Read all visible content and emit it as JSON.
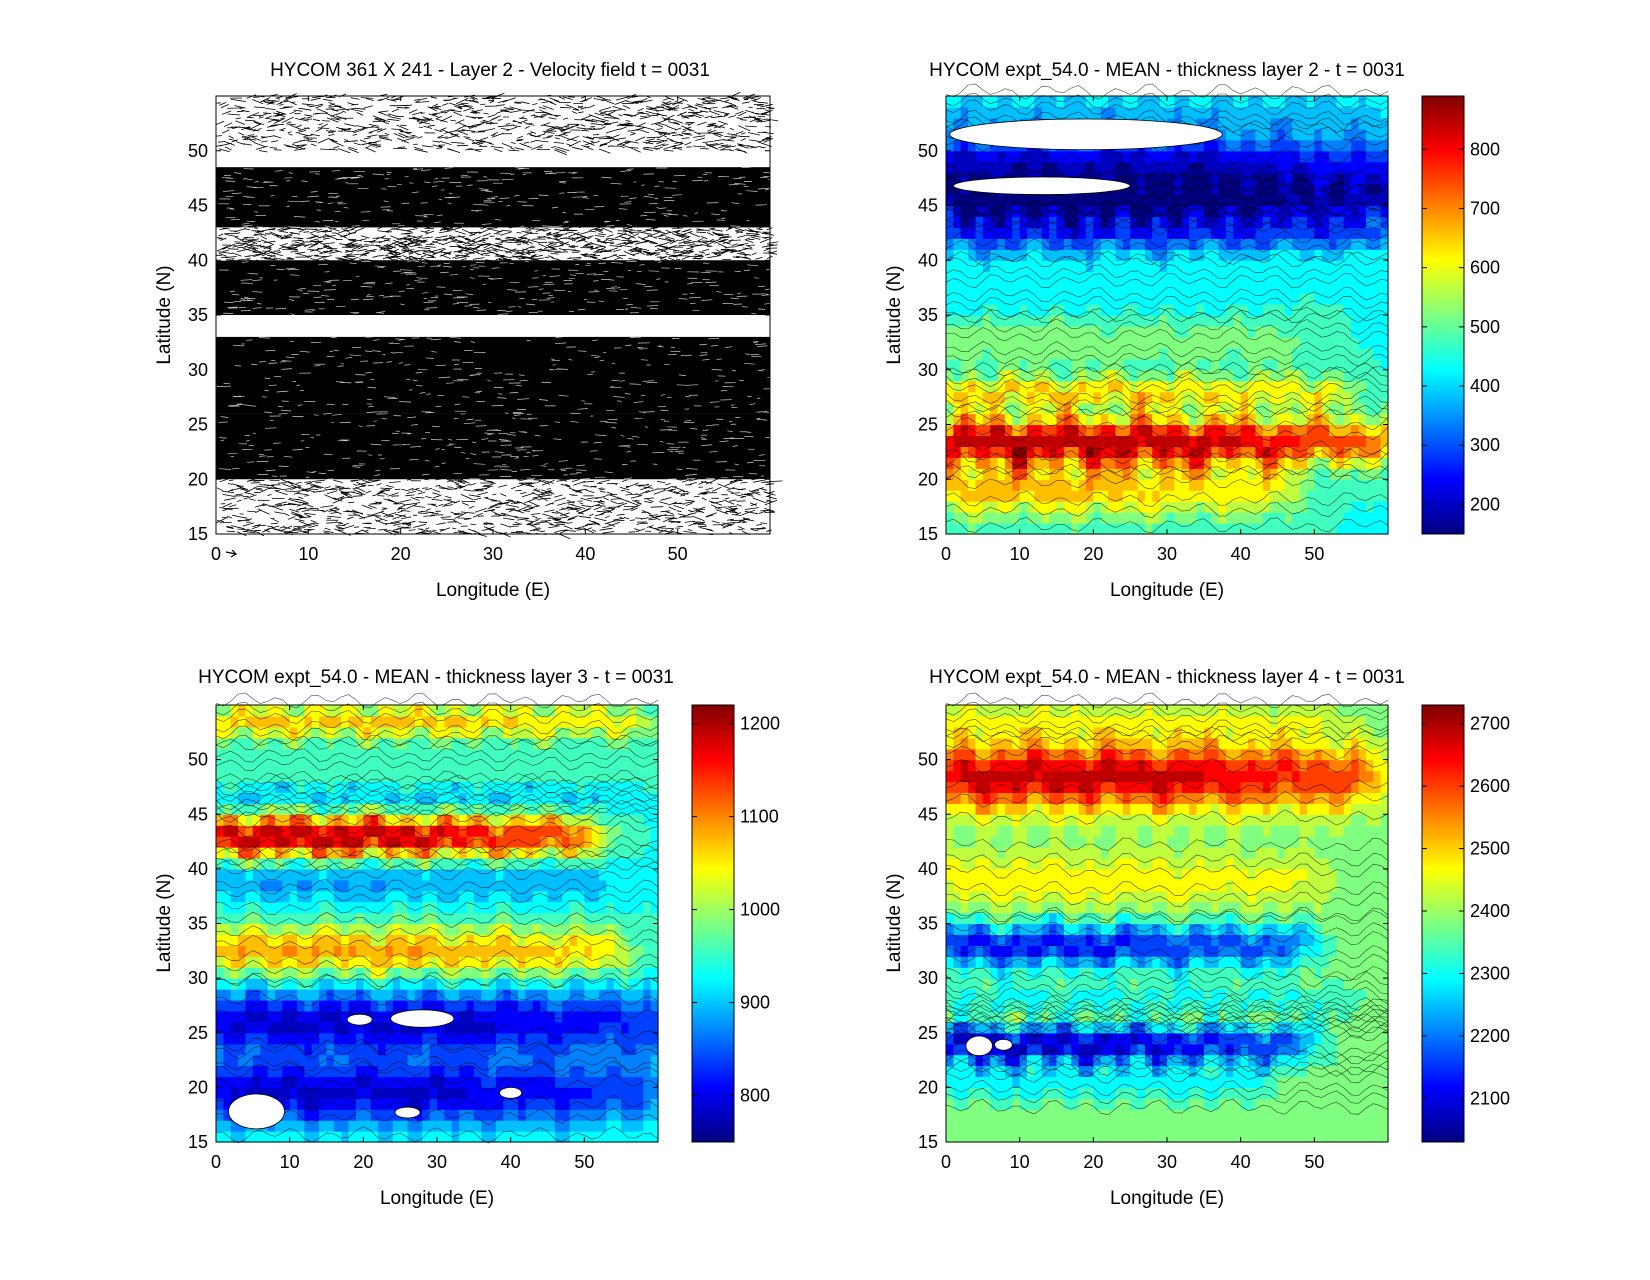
{
  "chart_data": [
    {
      "type": "heatmap",
      "id": "p1",
      "variant": "vector-field",
      "title": "HYCOM 361 X 241 - Layer 2 - Velocity field  t = 0031",
      "xlabel": "Longitude (E)",
      "ylabel": "Latitude (N)",
      "xlim": [
        0,
        60
      ],
      "ylim": [
        15,
        55
      ],
      "xticks": [
        0,
        10,
        20,
        30,
        40,
        50
      ],
      "yticks": [
        15,
        20,
        25,
        30,
        35,
        40,
        45,
        50
      ],
      "dense_bands_lat": [
        [
          43,
          48.5
        ],
        [
          35,
          40
        ],
        [
          26,
          33
        ],
        [
          20,
          26
        ]
      ],
      "sparse_bands_lat": [
        [
          50,
          55
        ],
        [
          40,
          43
        ],
        [
          15,
          20
        ]
      ]
    },
    {
      "type": "heatmap",
      "id": "p2",
      "variant": "filled-contour",
      "title": "HYCOM expt_54.0 - MEAN - thickness layer 2 - t = 0031",
      "xlabel": "Longitude (E)",
      "ylabel": "Latitude (N)",
      "xlim": [
        0,
        60
      ],
      "ylim": [
        15,
        55
      ],
      "xticks": [
        0,
        10,
        20,
        30,
        40,
        50
      ],
      "yticks": [
        15,
        20,
        25,
        30,
        35,
        40,
        45,
        50
      ],
      "colorbar": {
        "min": 150,
        "max": 890,
        "ticks": [
          200,
          300,
          400,
          500,
          600,
          700,
          800
        ]
      },
      "background": 450,
      "bands": [
        {
          "lat": 53.5,
          "value": 380,
          "width": 1.5,
          "lon_end": 55,
          "taper": 0.3
        },
        {
          "lat": 48.5,
          "value": 200,
          "width": 3.0,
          "lon_end": 60,
          "taper": 0.8
        },
        {
          "lat": 45.5,
          "value": 220,
          "width": 2.0,
          "lon_end": 60,
          "taper": 0.8
        },
        {
          "lat": 42.5,
          "value": 280,
          "width": 1.8,
          "lon_end": 58,
          "taper": 0.6
        },
        {
          "lat": 37.5,
          "value": 410,
          "width": 2.0,
          "lon_end": 40,
          "taper": 0.6
        },
        {
          "lat": 32.5,
          "value": 540,
          "width": 2.0,
          "lon_end": 45,
          "taper": 0.5
        },
        {
          "lat": 28.0,
          "value": 640,
          "width": 1.5,
          "lon_end": 52,
          "taper": 0.6
        },
        {
          "lat": 23.5,
          "value": 850,
          "width": 2.2,
          "lon_end": 57,
          "taper": 0.8
        },
        {
          "lat": 19.0,
          "value": 650,
          "width": 2.5,
          "lon_end": 44,
          "taper": 0.6
        }
      ],
      "blanks": [
        {
          "lon": 19,
          "lat": 51.5,
          "rx": 18.5,
          "ry": 1.4
        },
        {
          "lon": 13,
          "lat": 46.8,
          "rx": 12,
          "ry": 0.8
        }
      ]
    },
    {
      "type": "heatmap",
      "id": "p3",
      "variant": "filled-contour",
      "title": "HYCOM expt_54.0 - MEAN - thickness layer 3 - t = 0031",
      "xlabel": "Longitude (E)",
      "ylabel": "Latitude (N)",
      "xlim": [
        0,
        60
      ],
      "ylim": [
        15,
        55
      ],
      "xticks": [
        0,
        10,
        20,
        30,
        40,
        50
      ],
      "yticks": [
        15,
        20,
        25,
        30,
        35,
        40,
        45,
        50
      ],
      "colorbar": {
        "min": 750,
        "max": 1220,
        "ticks": [
          800,
          900,
          1000,
          1100,
          1200
        ]
      },
      "background": 940,
      "bands": [
        {
          "lat": 53.5,
          "value": 1070,
          "width": 1.5,
          "lon_end": 55,
          "taper": 0.5
        },
        {
          "lat": 49.0,
          "value": 960,
          "width": 2.0,
          "lon_end": 55,
          "taper": 0.5
        },
        {
          "lat": 46.5,
          "value": 890,
          "width": 1.2,
          "lon_end": 52,
          "taper": 0.5
        },
        {
          "lat": 43.0,
          "value": 1200,
          "width": 2.0,
          "lon_end": 48,
          "taper": 0.8
        },
        {
          "lat": 39.0,
          "value": 880,
          "width": 2.0,
          "lon_end": 50,
          "taper": 0.5
        },
        {
          "lat": 32.5,
          "value": 1090,
          "width": 2.2,
          "lon_end": 52,
          "taper": 0.6
        },
        {
          "lat": 26.0,
          "value": 790,
          "width": 3.0,
          "lon_end": 60,
          "taper": 0.8
        },
        {
          "lat": 19.5,
          "value": 790,
          "width": 3.0,
          "lon_end": 56,
          "taper": 0.8
        }
      ],
      "blanks": [
        {
          "lon": 5.5,
          "lat": 17.8,
          "rx": 3.8,
          "ry": 1.6
        },
        {
          "lon": 28,
          "lat": 26.3,
          "rx": 4.3,
          "ry": 0.8
        },
        {
          "lon": 19.5,
          "lat": 26.2,
          "rx": 1.7,
          "ry": 0.5
        },
        {
          "lon": 26,
          "lat": 17.7,
          "rx": 1.7,
          "ry": 0.5
        },
        {
          "lon": 40,
          "lat": 19.5,
          "rx": 1.5,
          "ry": 0.5
        }
      ]
    },
    {
      "type": "heatmap",
      "id": "p4",
      "variant": "filled-contour",
      "title": "HYCOM expt_54.0 - MEAN - thickness layer 4 - t = 0031",
      "xlabel": "Longitude (E)",
      "ylabel": "Latitude (N)",
      "xlim": [
        0,
        60
      ],
      "ylim": [
        15,
        55
      ],
      "xticks": [
        0,
        10,
        20,
        30,
        40,
        50
      ],
      "yticks": [
        15,
        20,
        25,
        30,
        35,
        40,
        45,
        50
      ],
      "colorbar": {
        "min": 2030,
        "max": 2730,
        "ticks": [
          2100,
          2200,
          2300,
          2400,
          2500,
          2600,
          2700
        ]
      },
      "background": 2380,
      "bands": [
        {
          "lat": 53.5,
          "value": 2450,
          "width": 1.5,
          "lon_end": 50,
          "taper": 0.5
        },
        {
          "lat": 48.5,
          "value": 2680,
          "width": 3.0,
          "lon_end": 55,
          "taper": 0.8
        },
        {
          "lat": 39.0,
          "value": 2470,
          "width": 2.5,
          "lon_end": 48,
          "taper": 0.6
        },
        {
          "lat": 33.0,
          "value": 2130,
          "width": 2.0,
          "lon_end": 46,
          "taper": 0.6
        },
        {
          "lat": 28.0,
          "value": 2300,
          "width": 1.5,
          "lon_end": 52,
          "taper": 0.5
        },
        {
          "lat": 26.5,
          "value": 2430,
          "width": 1.0,
          "lon_end": 44,
          "taper": 0.5
        },
        {
          "lat": 24.0,
          "value": 2080,
          "width": 1.8,
          "lon_end": 46,
          "taper": 0.8
        },
        {
          "lat": 20.5,
          "value": 2290,
          "width": 1.8,
          "lon_end": 40,
          "taper": 0.5
        }
      ],
      "blanks": [
        {
          "lon": 4.5,
          "lat": 23.8,
          "rx": 1.8,
          "ry": 0.9
        },
        {
          "lon": 7.8,
          "lat": 23.9,
          "rx": 1.2,
          "ry": 0.5
        }
      ]
    }
  ]
}
